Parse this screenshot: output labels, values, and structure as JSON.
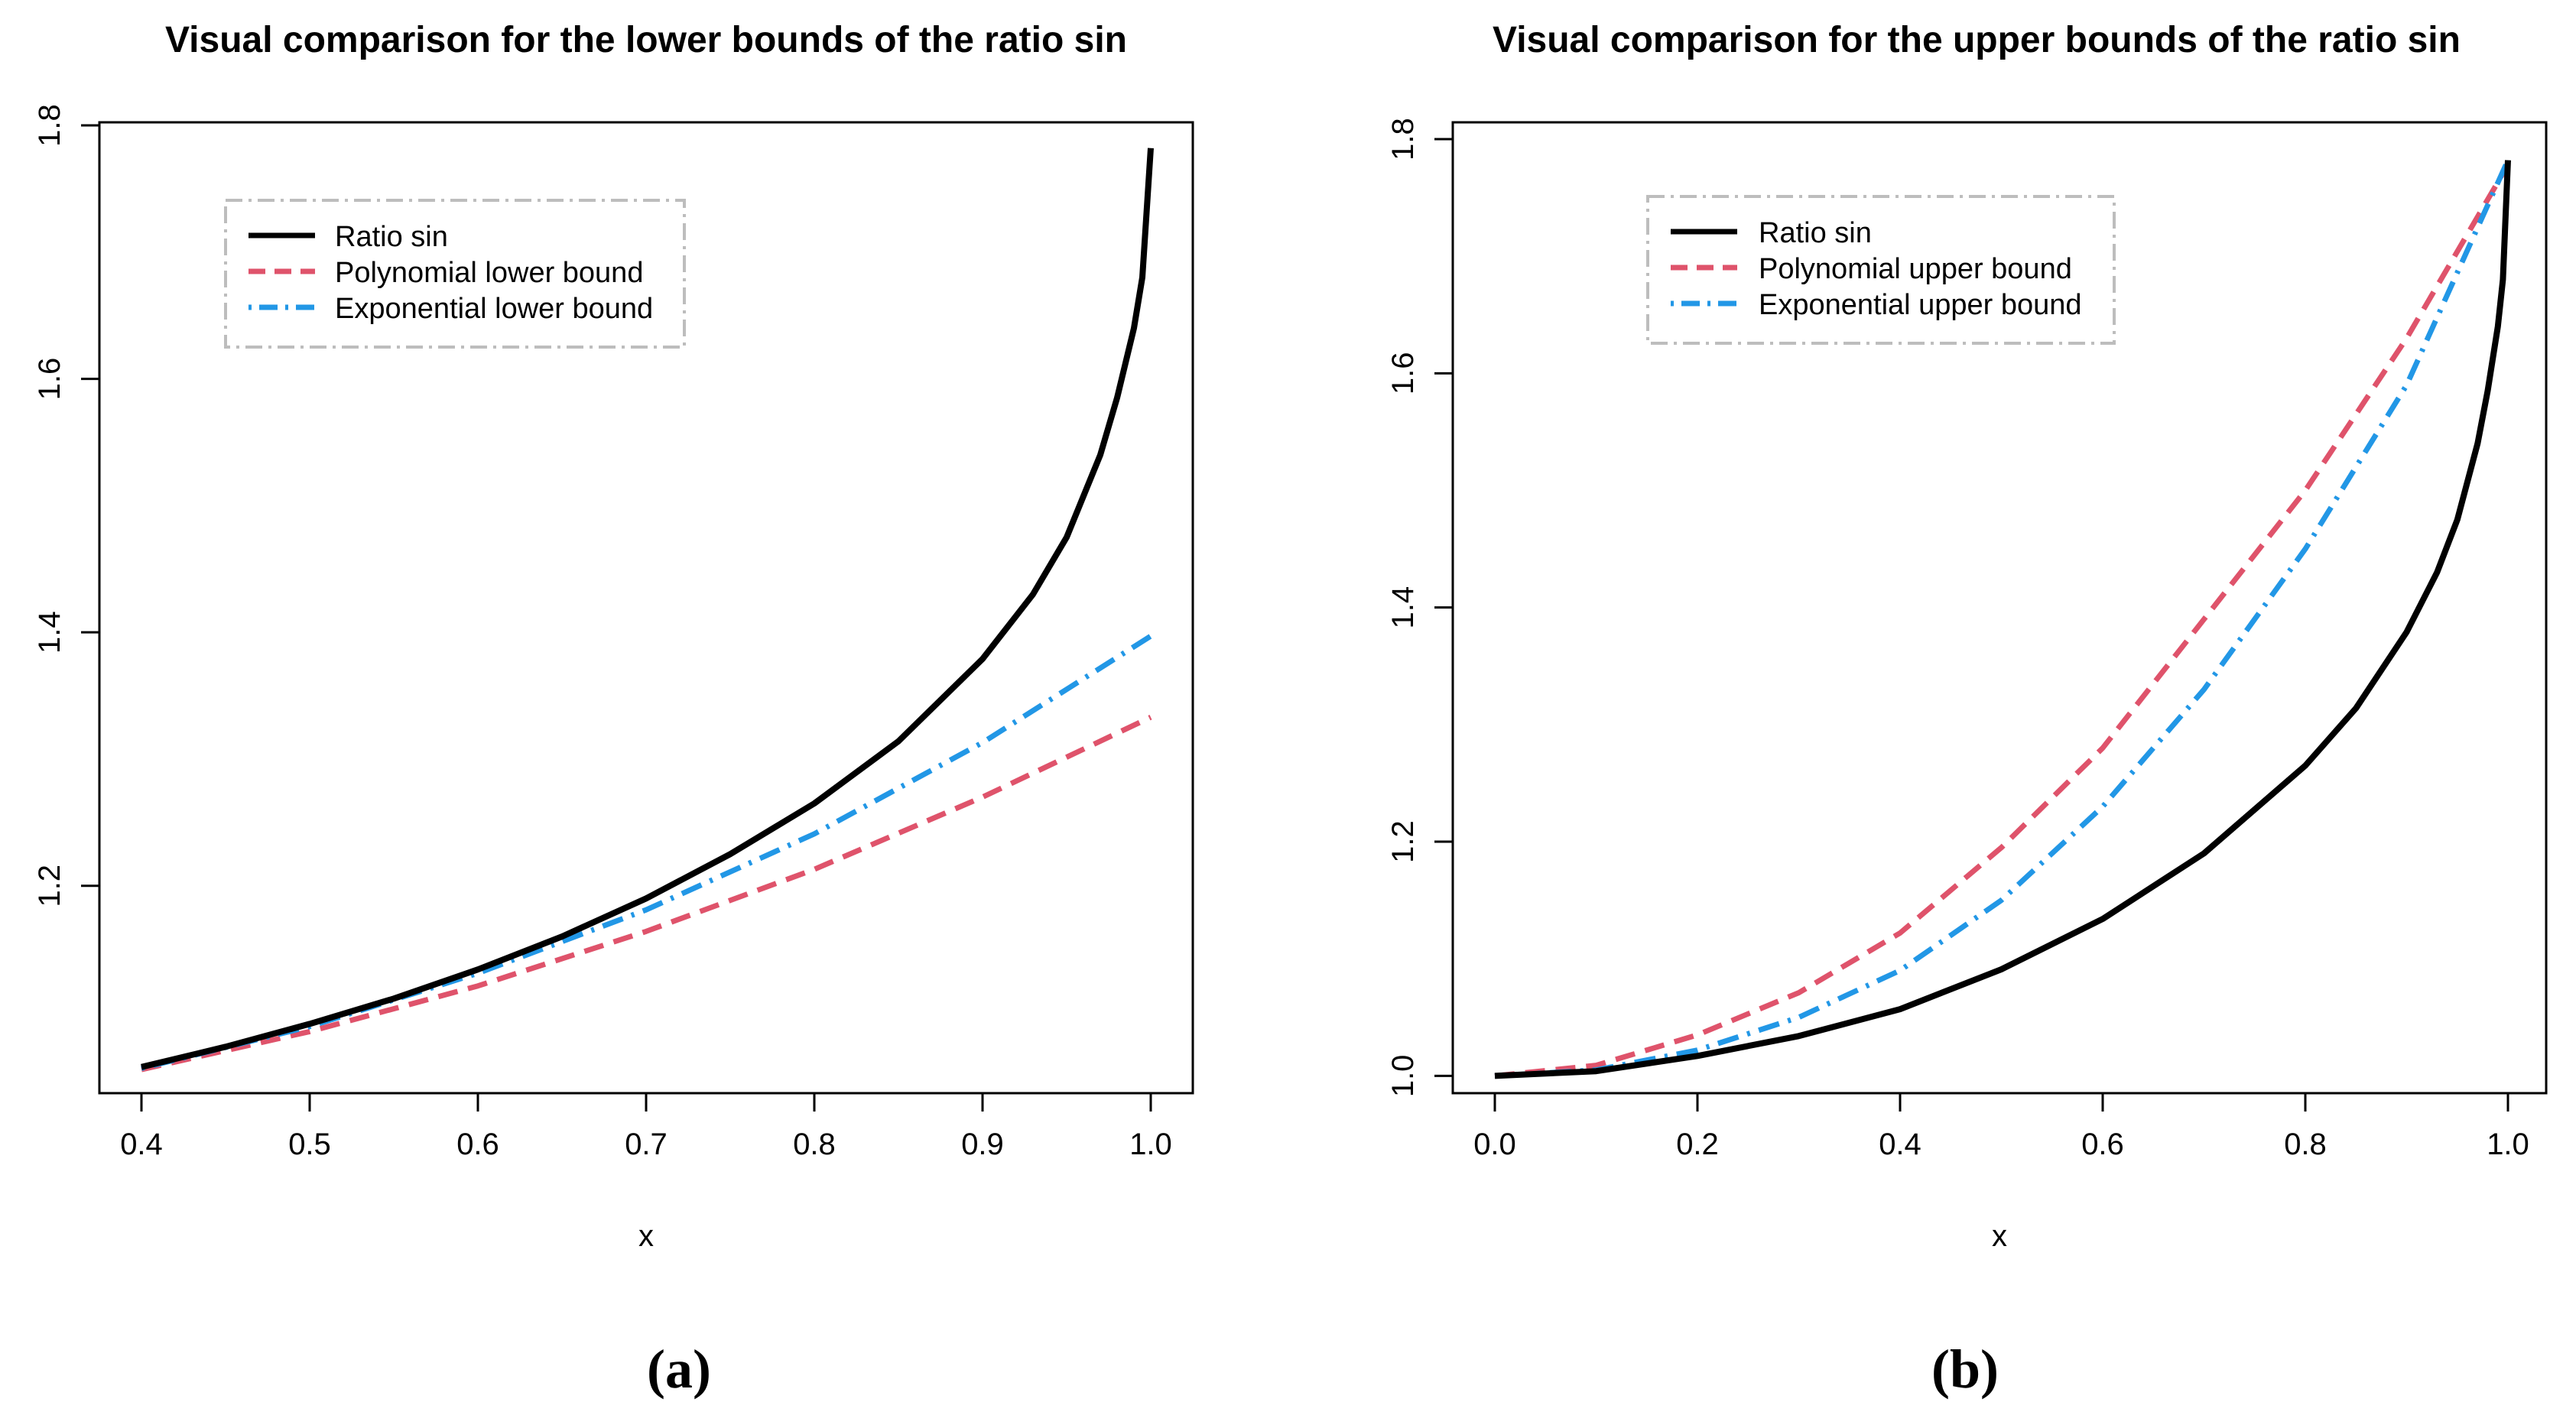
{
  "chart_data": [
    {
      "type": "line",
      "caption": "(a)",
      "title": "Visual comparison for the lower bounds of the ratio sin",
      "xlabel": "x",
      "ylabel": "",
      "xlim": [
        0.4,
        1.0
      ],
      "ylim": [
        1.04,
        1.8
      ],
      "xticks": [
        0.4,
        0.5,
        0.6,
        0.7,
        0.8,
        0.9,
        1.0
      ],
      "xtick_labels": [
        "0.4",
        "0.5",
        "0.6",
        "0.7",
        "0.8",
        "0.9",
        "1.0"
      ],
      "yticks": [
        1.2,
        1.4,
        1.6,
        1.8
      ],
      "ytick_labels": [
        "1.2",
        "1.4",
        "1.6",
        "1.8"
      ],
      "legend_position": "top-left",
      "grid": false,
      "series": [
        {
          "name": "Ratio sin",
          "color": "#000000",
          "style": "solid",
          "x": [
            0.4,
            0.45,
            0.5,
            0.55,
            0.6,
            0.65,
            0.7,
            0.75,
            0.8,
            0.85,
            0.9,
            0.93,
            0.95,
            0.97,
            0.98,
            0.99,
            0.995,
            1.0
          ],
          "y": [
            1.057,
            1.073,
            1.091,
            1.111,
            1.134,
            1.16,
            1.19,
            1.225,
            1.265,
            1.314,
            1.379,
            1.43,
            1.475,
            1.54,
            1.585,
            1.64,
            1.68,
            1.782
          ]
        },
        {
          "name": "Polynomial lower bound",
          "color": "#DF536B",
          "style": "dashed",
          "x": [
            0.4,
            0.5,
            0.6,
            0.7,
            0.8,
            0.9,
            1.0
          ],
          "y": [
            1.055,
            1.085,
            1.121,
            1.164,
            1.213,
            1.27,
            1.333
          ]
        },
        {
          "name": "Exponential lower bound",
          "color": "#2297E6",
          "style": "dotdash",
          "x": [
            0.4,
            0.5,
            0.6,
            0.7,
            0.8,
            0.9,
            1.0
          ],
          "y": [
            1.056,
            1.089,
            1.131,
            1.181,
            1.241,
            1.313,
            1.397
          ]
        }
      ]
    },
    {
      "type": "line",
      "caption": "(b)",
      "title": "Visual comparison for the upper bounds of the ratio sin",
      "xlabel": "x",
      "ylabel": "",
      "xlim": [
        0.0,
        1.0
      ],
      "ylim": [
        0.98,
        1.8
      ],
      "xticks": [
        0.0,
        0.2,
        0.4,
        0.6,
        0.8,
        1.0
      ],
      "xtick_labels": [
        "0.0",
        "0.2",
        "0.4",
        "0.6",
        "0.8",
        "1.0"
      ],
      "yticks": [
        1.0,
        1.2,
        1.4,
        1.6,
        1.8
      ],
      "ytick_labels": [
        "1.0",
        "1.2",
        "1.4",
        "1.6",
        "1.8"
      ],
      "legend_position": "top-left",
      "grid": false,
      "series": [
        {
          "name": "Ratio sin",
          "color": "#000000",
          "style": "solid",
          "x": [
            0.0,
            0.1,
            0.2,
            0.3,
            0.4,
            0.5,
            0.6,
            0.7,
            0.8,
            0.85,
            0.9,
            0.93,
            0.95,
            0.97,
            0.98,
            0.99,
            0.995,
            1.0
          ],
          "y": [
            1.0,
            1.004,
            1.017,
            1.034,
            1.057,
            1.091,
            1.134,
            1.19,
            1.265,
            1.314,
            1.379,
            1.43,
            1.475,
            1.54,
            1.585,
            1.64,
            1.68,
            1.782
          ]
        },
        {
          "name": "Polynomial upper bound",
          "color": "#DF536B",
          "style": "dashed",
          "x": [
            0.0,
            0.1,
            0.2,
            0.3,
            0.4,
            0.5,
            0.6,
            0.7,
            0.8,
            0.9,
            1.0
          ],
          "y": [
            1.0,
            1.009,
            1.035,
            1.071,
            1.122,
            1.195,
            1.28,
            1.39,
            1.5,
            1.63,
            1.778
          ]
        },
        {
          "name": "Exponential upper bound",
          "color": "#2297E6",
          "style": "dotdash",
          "x": [
            0.0,
            0.1,
            0.2,
            0.3,
            0.4,
            0.5,
            0.6,
            0.7,
            0.8,
            0.9,
            1.0
          ],
          "y": [
            1.0,
            1.005,
            1.022,
            1.05,
            1.09,
            1.15,
            1.23,
            1.33,
            1.45,
            1.59,
            1.782
          ]
        }
      ]
    }
  ]
}
